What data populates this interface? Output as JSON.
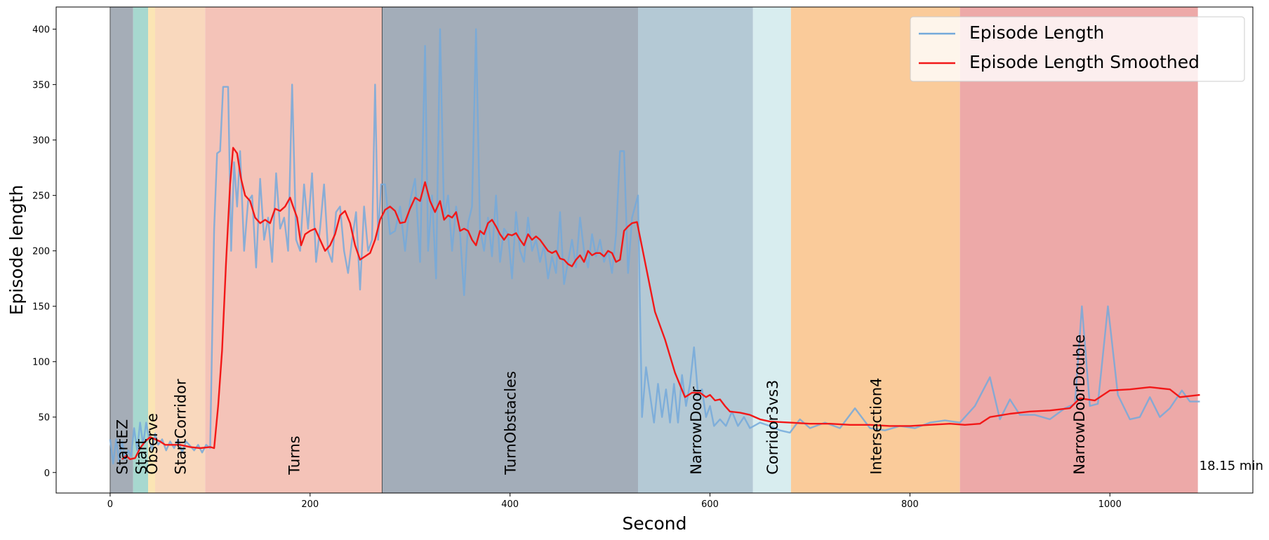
{
  "chart_data": {
    "type": "line",
    "xlabel": "Second",
    "ylabel": "Episode length",
    "xlim": [
      -54,
      1143
    ],
    "ylim": [
      -18.5,
      420
    ],
    "xticks": [
      0,
      200,
      400,
      600,
      800,
      1000
    ],
    "yticks": [
      0,
      50,
      100,
      150,
      200,
      250,
      300,
      350,
      400
    ],
    "legend": "upper right",
    "annotation": "18.15 min",
    "regions": [
      {
        "label": "StartEZ",
        "start": 0,
        "end": 23,
        "color": "#a5adb7"
      },
      {
        "label": "Start",
        "start": 23,
        "end": 38,
        "color": "#a7d8cf"
      },
      {
        "label": "Observe",
        "start": 38,
        "end": 45,
        "color": "#fbe5b4"
      },
      {
        "label": "StartCorridor",
        "start": 45,
        "end": 95,
        "color": "#f9d8bd"
      },
      {
        "label": "Turns",
        "start": 95,
        "end": 272,
        "color": "#f4c3b8"
      },
      {
        "label": "TurnObstacles",
        "start": 272,
        "end": 528,
        "color": "#a3adb9"
      },
      {
        "label": "NarrowDoor",
        "start": 528,
        "end": 643,
        "color": "#b4c9d5"
      },
      {
        "label": "Corridor3vs3",
        "start": 643,
        "end": 681,
        "color": "#d8edef"
      },
      {
        "label": "Intersection4",
        "start": 681,
        "end": 850,
        "color": "#facb9a"
      },
      {
        "label": "NarrowDoorDouble",
        "start": 850,
        "end": 1088,
        "color": "#eda9a8"
      }
    ],
    "series": [
      {
        "name": "Episode Length",
        "color": "#74a9da",
        "x": [
          0,
          3,
          6,
          9,
          12,
          15,
          18,
          21,
          24,
          27,
          30,
          33,
          36,
          39,
          42,
          45,
          48,
          52,
          56,
          60,
          64,
          68,
          72,
          76,
          80,
          84,
          88,
          92,
          96,
          100,
          104,
          107,
          110,
          113,
          118,
          121,
          124,
          127,
          130,
          134,
          138,
          142,
          146,
          150,
          154,
          158,
          162,
          166,
          170,
          174,
          178,
          182,
          186,
          190,
          194,
          198,
          202,
          206,
          210,
          214,
          218,
          222,
          226,
          230,
          234,
          238,
          242,
          246,
          250,
          254,
          258,
          262,
          265,
          268,
          271,
          275,
          280,
          285,
          290,
          295,
          300,
          305,
          310,
          315,
          318,
          322,
          326,
          330,
          334,
          338,
          342,
          346,
          350,
          354,
          358,
          362,
          366,
          370,
          374,
          378,
          382,
          386,
          390,
          394,
          398,
          402,
          406,
          410,
          414,
          418,
          422,
          426,
          430,
          434,
          438,
          442,
          446,
          450,
          454,
          458,
          462,
          466,
          470,
          474,
          478,
          482,
          486,
          490,
          494,
          498,
          502,
          506,
          510,
          514,
          518,
          522,
          528,
          532,
          536,
          540,
          544,
          548,
          552,
          556,
          560,
          564,
          568,
          572,
          576,
          580,
          584,
          588,
          592,
          596,
          600,
          604,
          610,
          616,
          622,
          628,
          634,
          640,
          650,
          660,
          670,
          680,
          690,
          700,
          715,
          730,
          745,
          760,
          775,
          790,
          805,
          820,
          835,
          850,
          865,
          880,
          890,
          900,
          910,
          925,
          940,
          955,
          965,
          972,
          980,
          988,
          998,
          1008,
          1020,
          1030,
          1040,
          1050,
          1060,
          1072,
          1080,
          1090
        ],
        "values": [
          30,
          8,
          30,
          10,
          28,
          12,
          20,
          15,
          40,
          20,
          45,
          25,
          45,
          30,
          20,
          35,
          25,
          30,
          20,
          28,
          22,
          30,
          18,
          28,
          24,
          20,
          25,
          18,
          25,
          22,
          220,
          288,
          290,
          348,
          348,
          200,
          280,
          240,
          290,
          200,
          245,
          250,
          185,
          265,
          210,
          230,
          190,
          270,
          220,
          230,
          200,
          350,
          210,
          200,
          260,
          220,
          270,
          190,
          220,
          260,
          200,
          190,
          235,
          240,
          200,
          180,
          210,
          235,
          165,
          240,
          200,
          210,
          350,
          210,
          260,
          260,
          215,
          218,
          240,
          200,
          245,
          265,
          190,
          385,
          200,
          250,
          175,
          400,
          230,
          250,
          200,
          240,
          215,
          160,
          225,
          240,
          400,
          220,
          200,
          230,
          195,
          250,
          190,
          220,
          215,
          175,
          235,
          200,
          190,
          230,
          200,
          210,
          190,
          205,
          175,
          195,
          180,
          235,
          170,
          190,
          210,
          185,
          230,
          200,
          185,
          215,
          195,
          210,
          190,
          200,
          180,
          215,
          290,
          290,
          180,
          230,
          250,
          50,
          95,
          70,
          45,
          80,
          50,
          75,
          45,
          80,
          45,
          88,
          60,
          80,
          113,
          70,
          75,
          50,
          60,
          42,
          48,
          42,
          55,
          42,
          50,
          40,
          45,
          42,
          38,
          36,
          48,
          40,
          45,
          40,
          58,
          40,
          38,
          42,
          40,
          45,
          47,
          45,
          60,
          86,
          48,
          66,
          52,
          52,
          48,
          58,
          62,
          150,
          60,
          62,
          150,
          70,
          48,
          50,
          68,
          50,
          58,
          74,
          64,
          64
        ]
      },
      {
        "name": "Episode Length Smoothed",
        "color": "#f21818",
        "x": [
          12,
          16,
          20,
          25,
          30,
          35,
          40,
          45,
          50,
          55,
          60,
          70,
          80,
          90,
          100,
          104,
          108,
          112,
          116,
          120,
          123,
          127,
          131,
          135,
          140,
          145,
          150,
          155,
          160,
          165,
          170,
          175,
          180,
          183,
          187,
          191,
          195,
          200,
          205,
          210,
          215,
          220,
          225,
          230,
          235,
          240,
          245,
          250,
          255,
          260,
          265,
          270,
          275,
          280,
          285,
          290,
          295,
          300,
          305,
          310,
          315,
          320,
          325,
          330,
          334,
          338,
          342,
          346,
          350,
          354,
          358,
          362,
          366,
          370,
          374,
          378,
          382,
          386,
          390,
          394,
          398,
          402,
          406,
          410,
          414,
          418,
          422,
          426,
          430,
          434,
          438,
          442,
          446,
          450,
          454,
          458,
          462,
          466,
          470,
          474,
          478,
          482,
          486,
          490,
          494,
          498,
          502,
          506,
          510,
          514,
          518,
          522,
          527,
          535,
          545,
          555,
          565,
          575,
          582,
          590,
          596,
          600,
          605,
          610,
          615,
          620,
          630,
          640,
          650,
          660,
          680,
          700,
          720,
          740,
          760,
          780,
          800,
          820,
          840,
          855,
          870,
          880,
          900,
          920,
          940,
          960,
          970,
          985,
          1000,
          1020,
          1040,
          1060,
          1070,
          1090
        ],
        "values": [
          12,
          15,
          12,
          13,
          22,
          28,
          32,
          30,
          28,
          25,
          25,
          25,
          23,
          22,
          23,
          22,
          60,
          110,
          190,
          260,
          293,
          288,
          265,
          250,
          245,
          230,
          225,
          228,
          225,
          238,
          236,
          240,
          248,
          240,
          230,
          205,
          215,
          218,
          220,
          210,
          200,
          205,
          215,
          232,
          236,
          225,
          205,
          192,
          195,
          198,
          210,
          228,
          237,
          240,
          236,
          225,
          226,
          238,
          248,
          245,
          262,
          245,
          235,
          245,
          228,
          232,
          230,
          235,
          218,
          220,
          218,
          210,
          205,
          218,
          215,
          225,
          228,
          222,
          215,
          210,
          215,
          214,
          216,
          210,
          205,
          215,
          210,
          213,
          210,
          205,
          200,
          198,
          200,
          193,
          192,
          188,
          186,
          192,
          196,
          190,
          200,
          196,
          198,
          198,
          195,
          200,
          198,
          190,
          192,
          218,
          222,
          225,
          226,
          190,
          145,
          120,
          90,
          68,
          72,
          72,
          68,
          70,
          65,
          66,
          60,
          55,
          54,
          52,
          48,
          46,
          45,
          44,
          44,
          43,
          43,
          42,
          42,
          43,
          44,
          43,
          44,
          50,
          53,
          55,
          56,
          58,
          67,
          65,
          74,
          75,
          77,
          75,
          68,
          70
        ]
      }
    ]
  }
}
